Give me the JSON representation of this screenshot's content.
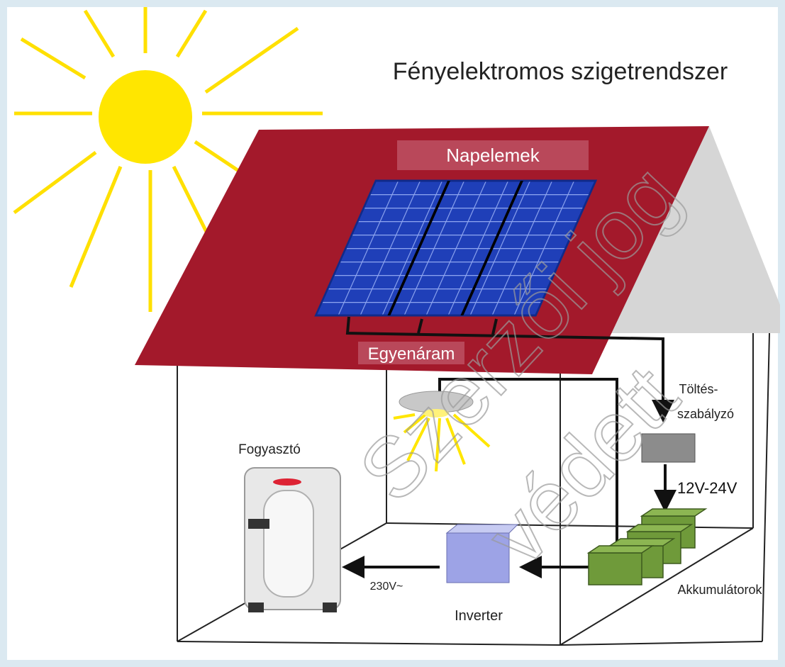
{
  "title": "Fényelektromos szigetrendszer",
  "labels": {
    "panels": "Napelemek",
    "dc": "Egyenáram",
    "controller": [
      "Töltés-",
      "szabályzó"
    ],
    "voltage_dc": "12V-24V",
    "consumer": "Fogyasztó",
    "voltage_ac": "230V~",
    "inverter": "Inverter",
    "batteries": "Akkumulátorok"
  },
  "watermark": [
    "Szerzői jog",
    "védett"
  ]
}
